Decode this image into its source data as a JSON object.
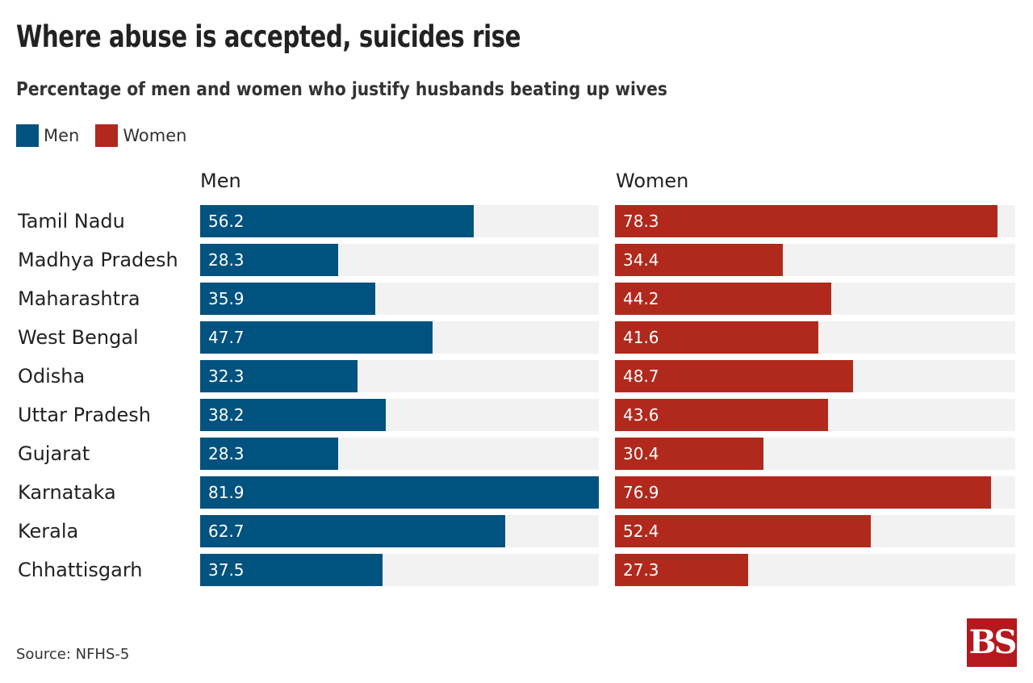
{
  "chart_data": {
    "type": "bar",
    "title": "Where abuse is accepted, suicides rise",
    "subtitle": "Percentage of men and women who justify husbands beating up wives",
    "categories": [
      "Tamil Nadu",
      "Madhya Pradesh",
      "Maharashtra",
      "West Bengal",
      "Odisha",
      "Uttar Pradesh",
      "Gujarat",
      "Karnataka",
      "Kerala",
      "Chhattisgarh"
    ],
    "series": [
      {
        "name": "Men",
        "color": "#00527f",
        "values": [
          56.2,
          28.3,
          35.9,
          47.7,
          32.3,
          38.2,
          28.3,
          81.9,
          62.7,
          37.5
        ]
      },
      {
        "name": "Women",
        "color": "#b0291c",
        "values": [
          78.3,
          34.4,
          44.2,
          41.6,
          48.7,
          43.6,
          30.4,
          76.9,
          52.4,
          27.3
        ]
      }
    ],
    "xlim": [
      0,
      81.9
    ],
    "legend_placement": "top-left",
    "source": "Source: NFHS-5",
    "logo": "BS"
  }
}
